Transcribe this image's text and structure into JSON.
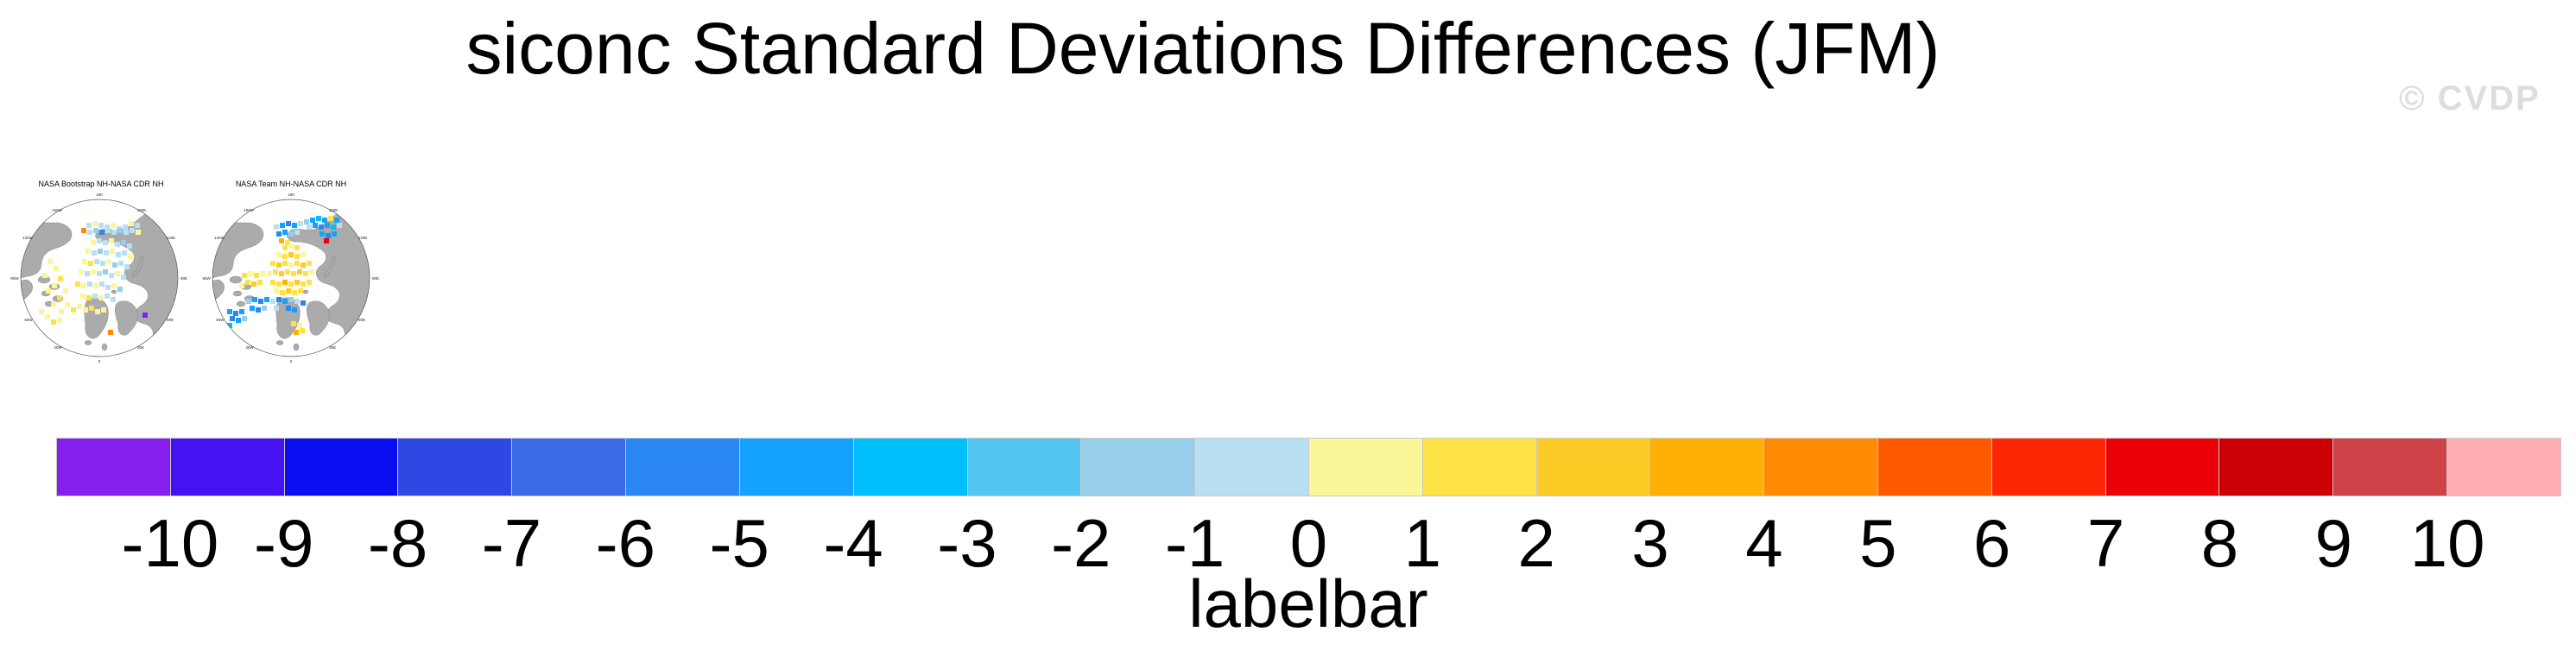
{
  "page": {
    "title": "siconc Standard Deviations Differences (JFM)",
    "watermark": "© CVDP",
    "background_color": "#FFFFFF",
    "watermark_color": "#DDDDDD"
  },
  "maps": [
    {
      "title": "NASA Bootstrap NH-NASA CDR NH",
      "lon_labels": [
        "180",
        "150W",
        "150E",
        "120W",
        "120E",
        "90W",
        "90E",
        "60W",
        "60E",
        "30W",
        "30E",
        "0"
      ],
      "land_color": "#ABABAB",
      "outline_color": "#555555",
      "cells": [
        [
          95,
          58,
          "#B9E0F2"
        ],
        [
          102,
          56,
          "#FBF697"
        ],
        [
          109,
          58,
          "#B9E0F2"
        ],
        [
          116,
          60,
          "#B9E0F2"
        ],
        [
          123,
          58,
          "#FBF697"
        ],
        [
          130,
          62,
          "#B9E0F2"
        ],
        [
          137,
          60,
          "#B9E0F2"
        ],
        [
          144,
          56,
          "#FBF697"
        ],
        [
          151,
          58,
          "#B9E0F2"
        ],
        [
          89,
          64,
          "#FF8B05"
        ],
        [
          96,
          66,
          "#B9E0F2"
        ],
        [
          103,
          64,
          "#97CFEA"
        ],
        [
          110,
          66,
          "#2986F2"
        ],
        [
          117,
          64,
          "#B9E0F2"
        ],
        [
          124,
          66,
          "#B9E0F2"
        ],
        [
          131,
          64,
          "#97CFEA"
        ],
        [
          138,
          66,
          "#B9E0F2"
        ],
        [
          145,
          64,
          "#B9E0F2"
        ],
        [
          152,
          66,
          "#FBF697"
        ],
        [
          100,
          78,
          "#FBF697"
        ],
        [
          107,
          76,
          "#B9E0F2"
        ],
        [
          114,
          78,
          "#B9E0F2"
        ],
        [
          121,
          76,
          "#FBF697"
        ],
        [
          128,
          80,
          "#B9E0F2"
        ],
        [
          135,
          78,
          "#97CFEA"
        ],
        [
          142,
          82,
          "#B9E0F2"
        ],
        [
          94,
          88,
          "#FBF697"
        ],
        [
          101,
          90,
          "#B9E0F2"
        ],
        [
          108,
          88,
          "#97CFEA"
        ],
        [
          115,
          90,
          "#B9E0F2"
        ],
        [
          122,
          88,
          "#FBF697"
        ],
        [
          129,
          92,
          "#B9E0F2"
        ],
        [
          136,
          90,
          "#B9E0F2"
        ],
        [
          143,
          94,
          "#FBF697"
        ],
        [
          90,
          100,
          "#FBF697"
        ],
        [
          97,
          102,
          "#FDE345"
        ],
        [
          104,
          100,
          "#B9E0F2"
        ],
        [
          111,
          102,
          "#B9E0F2"
        ],
        [
          118,
          100,
          "#FBF697"
        ],
        [
          125,
          104,
          "#97CFEA"
        ],
        [
          132,
          102,
          "#B9E0F2"
        ],
        [
          139,
          106,
          "#B9E0F2"
        ],
        [
          86,
          112,
          "#FBF697"
        ],
        [
          93,
          114,
          "#B9E0F2"
        ],
        [
          100,
          112,
          "#FBF697"
        ],
        [
          107,
          114,
          "#B9E0F2"
        ],
        [
          114,
          112,
          "#97CFEA"
        ],
        [
          121,
          116,
          "#B9E0F2"
        ],
        [
          128,
          114,
          "#FBF697"
        ],
        [
          135,
          118,
          "#B9E0F2"
        ],
        [
          82,
          126,
          "#FDE345"
        ],
        [
          89,
          128,
          "#FBF697"
        ],
        [
          96,
          126,
          "#B9E0F2"
        ],
        [
          103,
          128,
          "#FBF697"
        ],
        [
          110,
          126,
          "#B9E0F2"
        ],
        [
          117,
          130,
          "#B9E0F2"
        ],
        [
          124,
          128,
          "#FBF697"
        ],
        [
          131,
          132,
          "#97CFEA"
        ],
        [
          88,
          140,
          "#FBF697"
        ],
        [
          95,
          142,
          "#FDE345"
        ],
        [
          102,
          140,
          "#B9E0F2"
        ],
        [
          109,
          142,
          "#FBF697"
        ],
        [
          116,
          140,
          "#B9E0F2"
        ],
        [
          123,
          144,
          "#B9E0F2"
        ],
        [
          50,
          100,
          "#FBF697"
        ],
        [
          57,
          108,
          "#FBF697"
        ],
        [
          44,
          116,
          "#FBF697"
        ],
        [
          62,
          120,
          "#FDE345"
        ],
        [
          55,
          128,
          "#FBF697"
        ],
        [
          48,
          134,
          "#FBF697"
        ],
        [
          68,
          134,
          "#FBF697"
        ],
        [
          61,
          142,
          "#FDE345"
        ],
        [
          54,
          150,
          "#FBF697"
        ],
        [
          70,
          150,
          "#FBF697"
        ],
        [
          63,
          158,
          "#FBF697"
        ],
        [
          77,
          156,
          "#FDE345"
        ],
        [
          84,
          152,
          "#FBF697"
        ],
        [
          91,
          156,
          "#FBF697"
        ],
        [
          98,
          154,
          "#FDE345"
        ],
        [
          105,
          158,
          "#FBF697"
        ],
        [
          112,
          156,
          "#FBF697"
        ],
        [
          47,
          164,
          "#FBF697"
        ],
        [
          54,
          170,
          "#FDE345"
        ],
        [
          61,
          168,
          "#FBF697"
        ],
        [
          40,
          158,
          "#FBF697"
        ],
        [
          160,
          162,
          "#8520EC"
        ],
        [
          120,
          182,
          "#FF8B05"
        ]
      ]
    },
    {
      "title": "NASA Team NH-NASA CDR NH",
      "lon_labels": [
        "180",
        "150W",
        "150E",
        "120W",
        "120E",
        "90W",
        "90E",
        "60W",
        "60E",
        "30W",
        "30E",
        "0"
      ],
      "land_color": "#ABABAB",
      "outline_color": "#555555",
      "cells": [
        [
          90,
          60,
          "#B9E0F2"
        ],
        [
          97,
          58,
          "#14A2FC"
        ],
        [
          104,
          56,
          "#2986F2"
        ],
        [
          111,
          58,
          "#14A2FC"
        ],
        [
          118,
          56,
          "#B9E0F2"
        ],
        [
          125,
          54,
          "#97CFEA"
        ],
        [
          132,
          52,
          "#14A2FC"
        ],
        [
          139,
          50,
          "#00BFFA"
        ],
        [
          146,
          52,
          "#14A2FC"
        ],
        [
          153,
          50,
          "#FDE345"
        ],
        [
          160,
          52,
          "#14A2FC"
        ],
        [
          93,
          68,
          "#2986F2"
        ],
        [
          100,
          66,
          "#14A2FC"
        ],
        [
          107,
          68,
          "#97CFEA"
        ],
        [
          114,
          66,
          "#B9E0F2"
        ],
        [
          128,
          60,
          "#B9E0F2"
        ],
        [
          135,
          58,
          "#14A2FC"
        ],
        [
          142,
          60,
          "#2986F2"
        ],
        [
          149,
          58,
          "#14A2FC"
        ],
        [
          156,
          60,
          "#00BFFA"
        ],
        [
          163,
          58,
          "#B9E0F2"
        ],
        [
          143,
          68,
          "#14A2FC"
        ],
        [
          150,
          70,
          "#2986F2"
        ],
        [
          157,
          68,
          "#14A2FC"
        ],
        [
          148,
          76,
          "#EB0008"
        ],
        [
          96,
          76,
          "#FFB005"
        ],
        [
          103,
          78,
          "#FDE345"
        ],
        [
          100,
          84,
          "#FDE345"
        ],
        [
          107,
          82,
          "#FBF697"
        ],
        [
          114,
          84,
          "#FDE345"
        ],
        [
          93,
          92,
          "#FBF697"
        ],
        [
          100,
          94,
          "#FDE345"
        ],
        [
          107,
          92,
          "#FECB26"
        ],
        [
          114,
          94,
          "#FDE345"
        ],
        [
          121,
          92,
          "#FBF697"
        ],
        [
          86,
          102,
          "#FDE345"
        ],
        [
          93,
          104,
          "#FECB26"
        ],
        [
          100,
          102,
          "#FDE345"
        ],
        [
          107,
          104,
          "#FBF697"
        ],
        [
          114,
          102,
          "#FDE345"
        ],
        [
          121,
          104,
          "#FECB26"
        ],
        [
          128,
          102,
          "#FDE345"
        ],
        [
          82,
          114,
          "#FBF697"
        ],
        [
          89,
          112,
          "#FDE345"
        ],
        [
          96,
          114,
          "#FECB26"
        ],
        [
          103,
          112,
          "#FDE345"
        ],
        [
          110,
          114,
          "#FDE345"
        ],
        [
          117,
          112,
          "#FECB26"
        ],
        [
          124,
          114,
          "#FDE345"
        ],
        [
          131,
          112,
          "#FBF697"
        ],
        [
          86,
          124,
          "#FDE345"
        ],
        [
          93,
          126,
          "#FDE345"
        ],
        [
          100,
          124,
          "#FFB005"
        ],
        [
          107,
          126,
          "#FDE345"
        ],
        [
          114,
          124,
          "#FECB26"
        ],
        [
          121,
          126,
          "#FDE345"
        ],
        [
          128,
          124,
          "#FDE345"
        ],
        [
          90,
          134,
          "#FBF697"
        ],
        [
          97,
          136,
          "#FDE345"
        ],
        [
          104,
          134,
          "#FECB26"
        ],
        [
          111,
          136,
          "#FDE345"
        ],
        [
          118,
          134,
          "#FDE345"
        ],
        [
          53,
          116,
          "#FDE345"
        ],
        [
          60,
          114,
          "#FBF697"
        ],
        [
          67,
          116,
          "#FDE345"
        ],
        [
          74,
          114,
          "#FBF697"
        ],
        [
          57,
          124,
          "#FDE345"
        ],
        [
          64,
          126,
          "#FECB26"
        ],
        [
          71,
          124,
          "#FDE345"
        ],
        [
          50,
          128,
          "#FBF697"
        ],
        [
          58,
          146,
          "#97CFEA"
        ],
        [
          65,
          144,
          "#14A2FC"
        ],
        [
          72,
          146,
          "#2986F2"
        ],
        [
          79,
          144,
          "#14A2FC"
        ],
        [
          86,
          146,
          "#B9E0F2"
        ],
        [
          93,
          144,
          "#2986F2"
        ],
        [
          100,
          146,
          "#14A2FC"
        ],
        [
          107,
          144,
          "#97CFEA"
        ],
        [
          114,
          146,
          "#B9E0F2"
        ],
        [
          121,
          148,
          "#2986F2"
        ],
        [
          62,
          154,
          "#14A2FC"
        ],
        [
          69,
          156,
          "#2986F2"
        ],
        [
          76,
          154,
          "#97CFEA"
        ],
        [
          90,
          154,
          "#B9E0F2"
        ],
        [
          104,
          154,
          "#2986F2"
        ],
        [
          111,
          156,
          "#14A2FC"
        ],
        [
          36,
          158,
          "#14A2FC"
        ],
        [
          43,
          160,
          "#2986F2"
        ],
        [
          50,
          158,
          "#14A2FC"
        ],
        [
          39,
          166,
          "#2986F2"
        ],
        [
          46,
          168,
          "#14A2FC"
        ],
        [
          36,
          174,
          "#00BFFA"
        ],
        [
          53,
          166,
          "#97CFEA"
        ],
        [
          110,
          172,
          "#FDE345"
        ],
        [
          117,
          174,
          "#FBF697"
        ],
        [
          113,
          182,
          "#FFB005"
        ],
        [
          120,
          180,
          "#FDE345"
        ]
      ]
    }
  ],
  "labelbar": {
    "axis_label": "labelbar",
    "tick_labels": [
      "-10",
      "-9",
      "-8",
      "-7",
      "-6",
      "-5",
      "-4",
      "-3",
      "-2",
      "-1",
      "0",
      "1",
      "2",
      "3",
      "4",
      "5",
      "6",
      "7",
      "8",
      "9",
      "10"
    ],
    "colors": [
      "#8520EC",
      "#4512F2",
      "#0C0EF2",
      "#3048E3",
      "#3B6BE4",
      "#2986F2",
      "#14A2FC",
      "#00BFFA",
      "#52C5F0",
      "#97CFEA",
      "#B9E0F2",
      "#FBF697",
      "#FDE345",
      "#FECB26",
      "#FFB005",
      "#FF8B05",
      "#FF5A00",
      "#FF2605",
      "#EB0008",
      "#CC0005",
      "#CE4248",
      "#FFAFB4"
    ],
    "border_color": "#C8C8C8"
  }
}
